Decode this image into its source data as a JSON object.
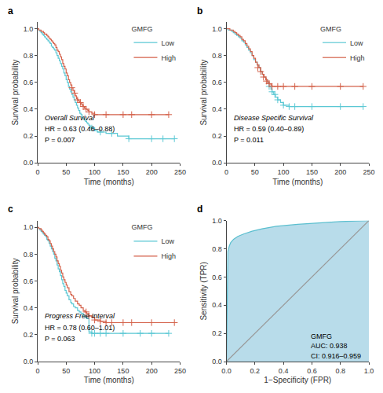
{
  "chart_data": [
    {
      "type": "step",
      "title": "a",
      "annotations": [
        "Overall Survival",
        "HR = 0.63 (0.46–0.88)",
        "P = 0.007"
      ],
      "xlabel": "Time (months)",
      "ylabel": "Survival probability",
      "xlim": [
        0,
        250
      ],
      "ylim": [
        0,
        1.05
      ],
      "xticks": [
        0,
        50,
        100,
        150,
        200,
        250
      ],
      "yticks": [
        {
          "value": 0,
          "label": "0.0"
        },
        0.2,
        0.4,
        0.6,
        0.8,
        {
          "value": 1,
          "label": "1.0"
        }
      ],
      "grid": false,
      "legend": "upper right",
      "legend_title": "GMFG",
      "series": [
        {
          "name": "Low",
          "color": "#5bc8d4",
          "marker": "cross",
          "x": [
            0,
            2,
            4,
            6,
            8,
            10,
            12,
            14,
            16,
            18,
            20,
            22,
            24,
            26,
            28,
            30,
            32,
            34,
            36,
            38,
            40,
            42,
            44,
            46,
            48,
            50,
            52,
            54,
            56,
            58,
            60,
            62,
            64,
            66,
            68,
            70,
            72,
            74,
            76,
            78,
            80,
            82,
            84,
            86,
            88,
            90,
            92,
            95,
            100,
            105,
            110,
            120,
            130,
            140,
            160,
            180,
            200,
            220,
            240
          ],
          "values": [
            1.0,
            0.99,
            0.98,
            0.97,
            0.96,
            0.95,
            0.94,
            0.93,
            0.92,
            0.91,
            0.9,
            0.89,
            0.87,
            0.86,
            0.85,
            0.84,
            0.82,
            0.8,
            0.78,
            0.76,
            0.74,
            0.72,
            0.7,
            0.67,
            0.65,
            0.62,
            0.6,
            0.57,
            0.55,
            0.53,
            0.51,
            0.49,
            0.47,
            0.45,
            0.43,
            0.41,
            0.39,
            0.37,
            0.36,
            0.34,
            0.33,
            0.32,
            0.31,
            0.3,
            0.29,
            0.28,
            0.27,
            0.26,
            0.24,
            0.23,
            0.23,
            0.22,
            0.22,
            0.2,
            0.18,
            0.18,
            0.18,
            0.18,
            0.18
          ],
          "censor_x": [
            95,
            110,
            130,
            160,
            200,
            220,
            240
          ],
          "censor_y": [
            0.26,
            0.23,
            0.22,
            0.18,
            0.18,
            0.18,
            0.18
          ]
        },
        {
          "name": "High",
          "color": "#d4614a",
          "marker": "cross",
          "x": [
            0,
            2,
            4,
            6,
            8,
            10,
            12,
            14,
            16,
            18,
            20,
            22,
            24,
            26,
            28,
            30,
            32,
            34,
            36,
            38,
            40,
            42,
            44,
            46,
            48,
            50,
            52,
            54,
            56,
            58,
            60,
            62,
            64,
            66,
            68,
            70,
            72,
            74,
            76,
            78,
            80,
            82,
            85,
            88,
            90,
            95,
            100,
            110,
            120,
            150,
            165,
            200,
            230
          ],
          "values": [
            1.0,
            0.99,
            0.99,
            0.98,
            0.98,
            0.97,
            0.96,
            0.96,
            0.95,
            0.94,
            0.93,
            0.92,
            0.91,
            0.9,
            0.89,
            0.88,
            0.86,
            0.84,
            0.83,
            0.81,
            0.79,
            0.77,
            0.74,
            0.72,
            0.7,
            0.67,
            0.65,
            0.62,
            0.6,
            0.58,
            0.56,
            0.54,
            0.52,
            0.5,
            0.48,
            0.47,
            0.46,
            0.45,
            0.44,
            0.43,
            0.42,
            0.41,
            0.4,
            0.39,
            0.38,
            0.37,
            0.36,
            0.36,
            0.36,
            0.36,
            0.36,
            0.36,
            0.36
          ],
          "censor_x": [
            60,
            65,
            70,
            75,
            80,
            85,
            90,
            100,
            120,
            150,
            165,
            200,
            230
          ],
          "censor_y": [
            0.56,
            0.52,
            0.47,
            0.45,
            0.42,
            0.4,
            0.38,
            0.36,
            0.36,
            0.36,
            0.36,
            0.36,
            0.36
          ]
        }
      ]
    },
    {
      "type": "step",
      "title": "b",
      "annotations": [
        "Disease Specific Survival",
        "HR = 0.59 (0.40–0.89)",
        "P = 0.011"
      ],
      "xlabel": "Time (months)",
      "ylabel": "Survival probability",
      "xlim": [
        0,
        250
      ],
      "ylim": [
        0,
        1.05
      ],
      "xticks": [
        0,
        50,
        100,
        150,
        200,
        250
      ],
      "yticks": [
        {
          "value": 0,
          "label": "0.0"
        },
        0.2,
        0.4,
        0.6,
        0.8,
        {
          "value": 1,
          "label": "1.0"
        }
      ],
      "grid": false,
      "legend": "upper right",
      "legend_title": "GMFG",
      "series": [
        {
          "name": "Low",
          "color": "#5bc8d4",
          "marker": "cross",
          "x": [
            0,
            3,
            6,
            9,
            12,
            15,
            18,
            21,
            24,
            27,
            30,
            33,
            36,
            39,
            42,
            45,
            48,
            51,
            54,
            57,
            60,
            63,
            66,
            69,
            72,
            75,
            78,
            80,
            83,
            86,
            90,
            95,
            100,
            110,
            120,
            150,
            200,
            240
          ],
          "values": [
            1.0,
            0.99,
            0.99,
            0.98,
            0.97,
            0.96,
            0.95,
            0.94,
            0.93,
            0.91,
            0.9,
            0.88,
            0.86,
            0.84,
            0.82,
            0.8,
            0.77,
            0.75,
            0.73,
            0.71,
            0.68,
            0.66,
            0.64,
            0.62,
            0.6,
            0.57,
            0.55,
            0.53,
            0.51,
            0.49,
            0.47,
            0.45,
            0.43,
            0.42,
            0.42,
            0.42,
            0.42,
            0.42
          ],
          "censor_x": [
            75,
            80,
            85,
            90,
            100,
            110,
            120,
            150,
            200,
            240
          ],
          "censor_y": [
            0.57,
            0.53,
            0.51,
            0.47,
            0.43,
            0.42,
            0.42,
            0.42,
            0.42,
            0.42
          ]
        },
        {
          "name": "High",
          "color": "#d4614a",
          "marker": "cross",
          "x": [
            0,
            3,
            6,
            9,
            12,
            15,
            18,
            21,
            24,
            27,
            30,
            33,
            36,
            39,
            42,
            45,
            48,
            51,
            54,
            57,
            60,
            63,
            66,
            69,
            72,
            75,
            78,
            80,
            90,
            100,
            120,
            150,
            200,
            240
          ],
          "values": [
            1.0,
            1.0,
            0.99,
            0.99,
            0.98,
            0.97,
            0.96,
            0.95,
            0.94,
            0.92,
            0.91,
            0.89,
            0.87,
            0.85,
            0.83,
            0.8,
            0.78,
            0.75,
            0.73,
            0.71,
            0.68,
            0.66,
            0.64,
            0.62,
            0.6,
            0.59,
            0.58,
            0.57,
            0.57,
            0.57,
            0.57,
            0.57,
            0.57,
            0.57
          ],
          "censor_x": [
            55,
            60,
            65,
            70,
            75,
            80,
            90,
            100,
            120,
            150,
            200,
            240
          ],
          "censor_y": [
            0.71,
            0.68,
            0.64,
            0.61,
            0.59,
            0.57,
            0.57,
            0.57,
            0.57,
            0.57,
            0.57,
            0.57
          ]
        }
      ]
    },
    {
      "type": "step",
      "title": "c",
      "annotations": [
        "Progress Free Interval",
        "HR = 0.78 (0.60–1.01)",
        "P = 0.063"
      ],
      "xlabel": "Time (months)",
      "ylabel": "Survival probability",
      "xlim": [
        0,
        250
      ],
      "ylim": [
        0,
        1.05
      ],
      "xticks": [
        0,
        50,
        100,
        150,
        200,
        250
      ],
      "yticks": [
        {
          "value": 0,
          "label": "0.0"
        },
        0.2,
        0.4,
        0.6,
        0.8,
        {
          "value": 1,
          "label": "1.0"
        }
      ],
      "grid": false,
      "legend": "upper right",
      "legend_title": "GMFG",
      "series": [
        {
          "name": "Low",
          "color": "#5bc8d4",
          "marker": "cross",
          "x": [
            0,
            2,
            4,
            6,
            8,
            10,
            12,
            14,
            16,
            18,
            20,
            22,
            24,
            26,
            28,
            30,
            32,
            34,
            36,
            38,
            40,
            42,
            44,
            46,
            48,
            50,
            52,
            55,
            58,
            60,
            63,
            66,
            70,
            73,
            76,
            80,
            83,
            86,
            90,
            95,
            100,
            110,
            120,
            150,
            180,
            200,
            230
          ],
          "values": [
            1.0,
            0.99,
            0.98,
            0.97,
            0.96,
            0.95,
            0.94,
            0.93,
            0.91,
            0.9,
            0.88,
            0.86,
            0.84,
            0.82,
            0.8,
            0.77,
            0.75,
            0.72,
            0.69,
            0.67,
            0.64,
            0.61,
            0.58,
            0.56,
            0.53,
            0.51,
            0.49,
            0.46,
            0.44,
            0.43,
            0.41,
            0.4,
            0.38,
            0.37,
            0.36,
            0.34,
            0.33,
            0.32,
            0.22,
            0.21,
            0.21,
            0.21,
            0.21,
            0.21,
            0.21,
            0.21,
            0.21
          ],
          "censor_x": [
            95,
            100,
            110,
            120,
            150,
            180,
            200,
            230
          ],
          "censor_y": [
            0.21,
            0.21,
            0.21,
            0.21,
            0.21,
            0.21,
            0.21,
            0.21
          ]
        },
        {
          "name": "High",
          "color": "#d4614a",
          "marker": "cross",
          "x": [
            0,
            2,
            4,
            6,
            8,
            10,
            12,
            14,
            16,
            18,
            20,
            22,
            24,
            26,
            28,
            30,
            32,
            34,
            36,
            38,
            40,
            42,
            44,
            46,
            48,
            50,
            52,
            55,
            58,
            60,
            63,
            66,
            70,
            73,
            76,
            80,
            83,
            86,
            90,
            95,
            100,
            110,
            120,
            130,
            140,
            150,
            165,
            200,
            230,
            240
          ],
          "values": [
            1.0,
            0.99,
            0.99,
            0.98,
            0.97,
            0.96,
            0.95,
            0.94,
            0.93,
            0.91,
            0.9,
            0.88,
            0.86,
            0.84,
            0.82,
            0.8,
            0.78,
            0.75,
            0.73,
            0.71,
            0.68,
            0.66,
            0.63,
            0.61,
            0.59,
            0.57,
            0.55,
            0.52,
            0.5,
            0.49,
            0.47,
            0.45,
            0.43,
            0.42,
            0.4,
            0.38,
            0.37,
            0.36,
            0.34,
            0.33,
            0.31,
            0.3,
            0.29,
            0.29,
            0.29,
            0.29,
            0.29,
            0.29,
            0.29,
            0.29
          ],
          "censor_x": [
            85,
            90,
            100,
            110,
            120,
            130,
            150,
            165,
            200,
            240
          ],
          "censor_y": [
            0.37,
            0.34,
            0.31,
            0.3,
            0.29,
            0.29,
            0.29,
            0.29,
            0.29,
            0.29
          ]
        }
      ]
    },
    {
      "type": "line",
      "title": "d",
      "annotations": [
        "GMFG",
        "AUC: 0.938",
        "CI: 0.916–0.959"
      ],
      "xlabel": "1−Specificity (FPR)",
      "ylabel": "Sensitivity (TPR)",
      "xlim": [
        0,
        1.0
      ],
      "ylim": [
        0,
        1.0
      ],
      "xticks": [
        {
          "value": 0,
          "label": "0.0"
        },
        0.2,
        0.4,
        0.6,
        0.8,
        {
          "value": 1,
          "label": "1.0"
        }
      ],
      "yticks": [
        {
          "value": 0,
          "label": "0.0"
        },
        0.2,
        0.4,
        0.6,
        0.8,
        {
          "value": 1,
          "label": "1.0"
        }
      ],
      "grid": false,
      "series": [
        {
          "type": "area",
          "color": "#b8dcea",
          "x": [
            0.0,
            0.005,
            0.01,
            0.02,
            0.03,
            0.05,
            0.08,
            0.12,
            0.18,
            0.25,
            0.35,
            0.5,
            0.65,
            0.8,
            1.0
          ],
          "values": [
            0.0,
            0.63,
            0.78,
            0.82,
            0.845,
            0.868,
            0.888,
            0.905,
            0.925,
            0.942,
            0.96,
            0.974,
            0.984,
            0.993,
            1.0
          ]
        },
        {
          "type": "line",
          "color": "#5bbfcf",
          "x": [
            0.0,
            0.005,
            0.01,
            0.02,
            0.03,
            0.05,
            0.08,
            0.12,
            0.18,
            0.25,
            0.35,
            0.5,
            0.65,
            0.8,
            1.0
          ],
          "values": [
            0.0,
            0.63,
            0.78,
            0.82,
            0.845,
            0.868,
            0.888,
            0.905,
            0.925,
            0.942,
            0.96,
            0.974,
            0.984,
            0.993,
            1.0
          ]
        },
        {
          "type": "line",
          "color": "#999999",
          "x": [
            0,
            1
          ],
          "values": [
            0,
            1
          ]
        }
      ]
    }
  ]
}
